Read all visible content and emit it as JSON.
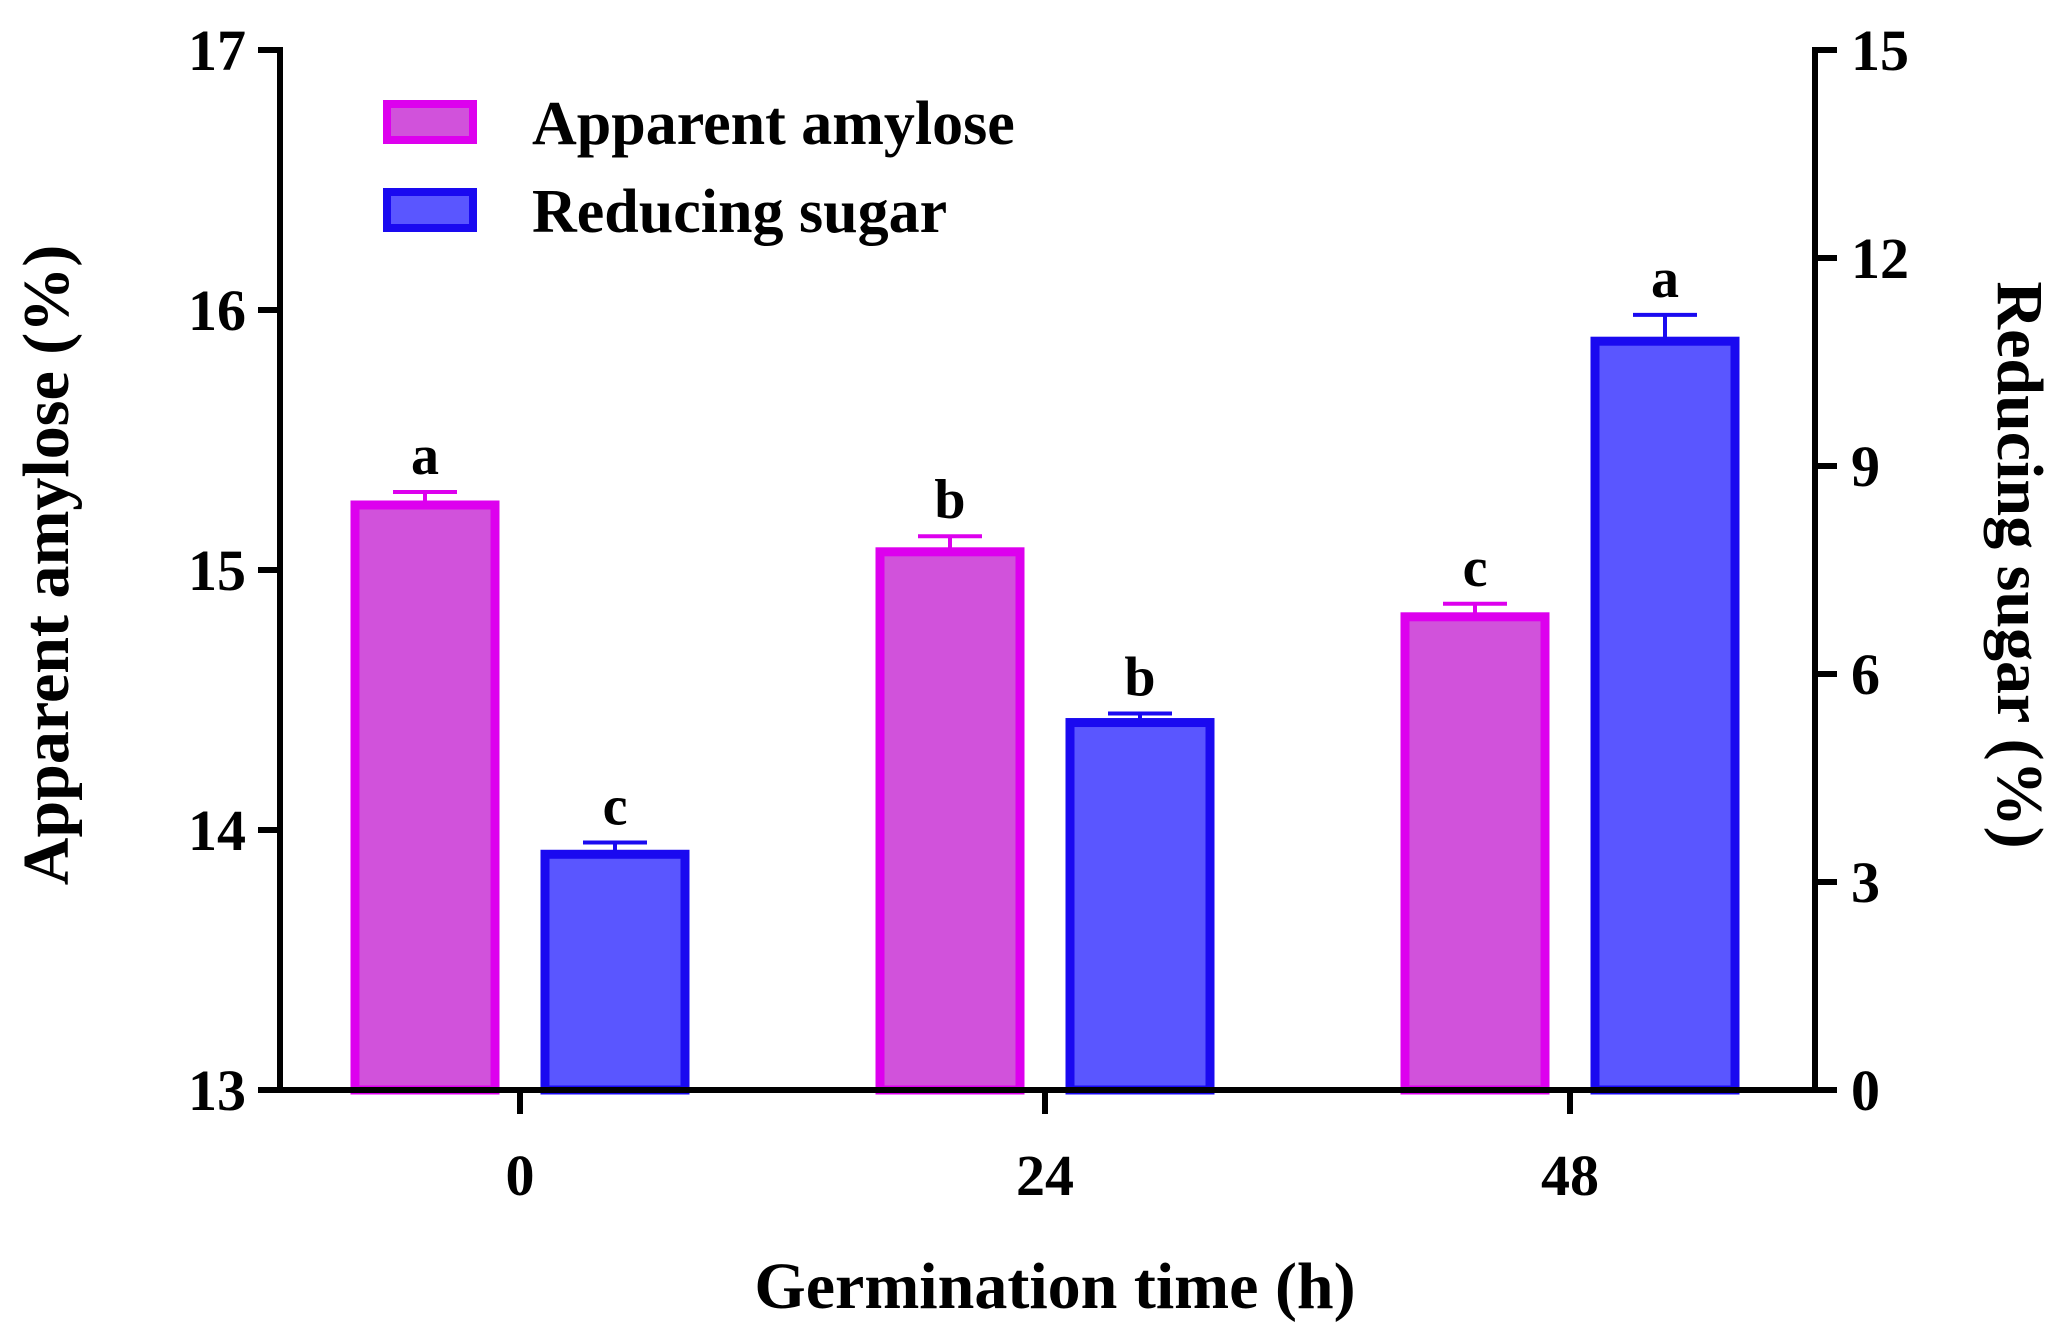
{
  "chart_data": {
    "type": "bar",
    "xlabel": "Germination time (h)",
    "ylabel_left": "Apparent amylose (%)",
    "ylabel_right": "Reducing sugar (%)",
    "categories": [
      "0",
      "24",
      "48"
    ],
    "left_axis": {
      "ylim": [
        13,
        17
      ],
      "ticks": [
        "13",
        "14",
        "15",
        "16",
        "17"
      ]
    },
    "right_axis": {
      "ylim": [
        0,
        15
      ],
      "ticks": [
        "0",
        "3",
        "6",
        "9",
        "12",
        "15"
      ]
    },
    "legend_position": "top-left",
    "series": [
      {
        "name": "Apparent amylose",
        "axis": "left",
        "fill": "#d152db",
        "stroke": "#dd00ee",
        "values": [
          15.25,
          15.07,
          14.82
        ],
        "errors": [
          0.05,
          0.06,
          0.05
        ],
        "significance": [
          "a",
          "b",
          "c"
        ]
      },
      {
        "name": "Reducing sugar",
        "axis": "right",
        "fill": "#5a56ff",
        "stroke": "#1a0af0",
        "values": [
          3.4,
          5.3,
          10.8
        ],
        "errors": [
          0.17,
          0.13,
          0.38
        ],
        "significance": [
          "c",
          "b",
          "a"
        ]
      }
    ]
  }
}
